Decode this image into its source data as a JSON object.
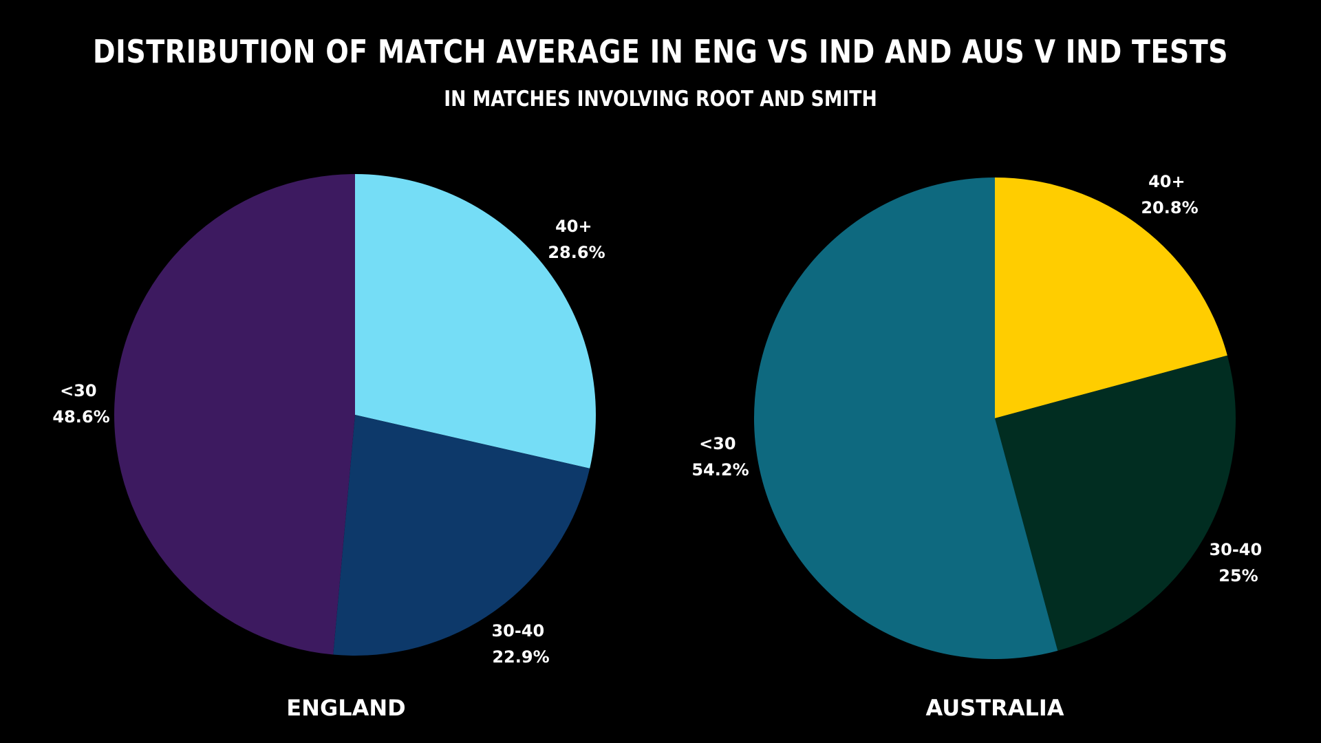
{
  "title": "DISTRIBUTION OF MATCH AVERAGE IN ENG VS IND AND AUS V IND TESTS",
  "subtitle": "IN MATCHES INVOLVING ROOT AND SMITH",
  "chart_data": [
    {
      "type": "pie",
      "title": "ENGLAND",
      "slices": [
        {
          "label": "40+",
          "pct_text": "28.6%",
          "value": 28.6,
          "color": "#75DDF6"
        },
        {
          "label": "30-40",
          "pct_text": "22.9%",
          "value": 22.9,
          "color": "#0D396A"
        },
        {
          "label": "<30",
          "pct_text": "48.6%",
          "value": 48.6,
          "color": "#3D1A60"
        }
      ]
    },
    {
      "type": "pie",
      "title": "AUSTRALIA",
      "slices": [
        {
          "label": "40+",
          "pct_text": "20.8%",
          "value": 20.8,
          "color": "#FFCD00"
        },
        {
          "label": "30-40",
          "pct_text": "25%",
          "value": 25.0,
          "color": "#012D21"
        },
        {
          "label": "<30",
          "pct_text": "54.2%",
          "value": 54.2,
          "color": "#0E697F"
        }
      ]
    }
  ]
}
